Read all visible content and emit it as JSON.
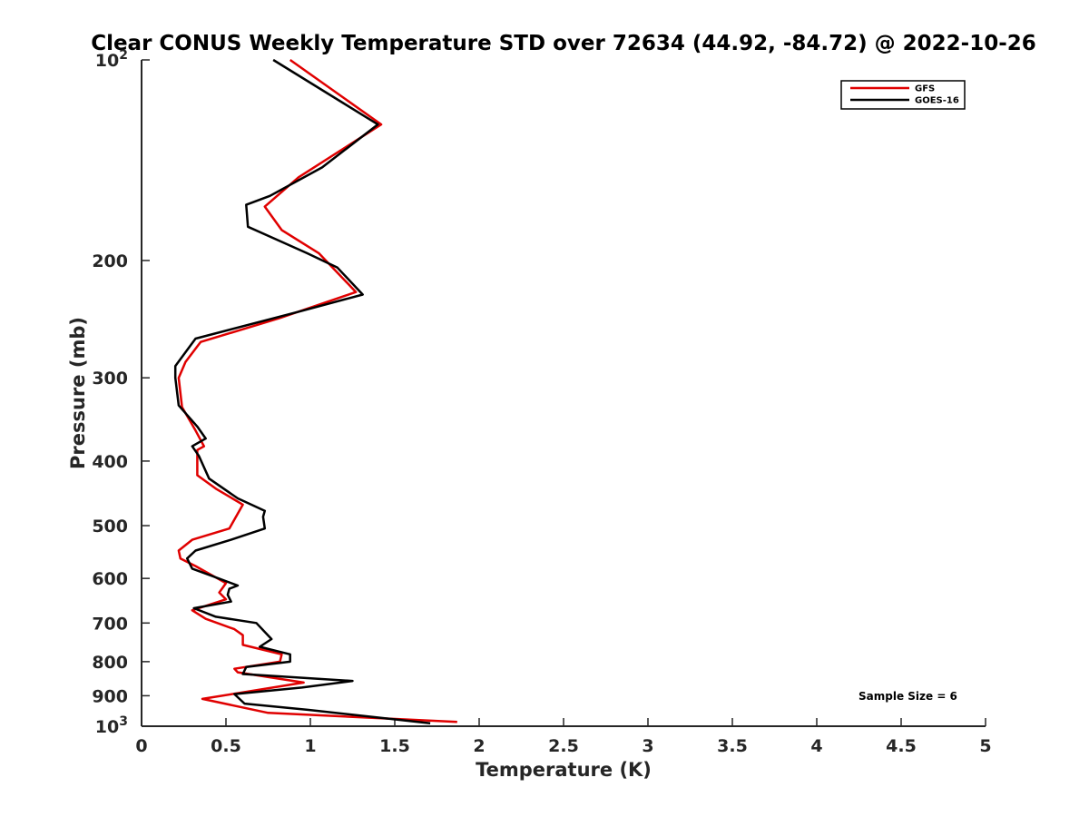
{
  "chart_data": {
    "type": "line",
    "title": "Clear CONUS Weekly Temperature STD over 72634 (44.92, -84.72) @ 2022-10-26",
    "xlabel": "Temperature (K)",
    "ylabel": "Pressure (mb)",
    "xlim": [
      0,
      5
    ],
    "ylim": [
      100,
      1000
    ],
    "yscale": "log",
    "y_reversed": true,
    "grid": false,
    "legend_position": "top-right",
    "x_ticks": [
      {
        "value": 0,
        "label": "0"
      },
      {
        "value": 0.5,
        "label": "0.5"
      },
      {
        "value": 1,
        "label": "1"
      },
      {
        "value": 1.5,
        "label": "1.5"
      },
      {
        "value": 2,
        "label": "2"
      },
      {
        "value": 2.5,
        "label": "2.5"
      },
      {
        "value": 3,
        "label": "3"
      },
      {
        "value": 3.5,
        "label": "3.5"
      },
      {
        "value": 4,
        "label": "4"
      },
      {
        "value": 4.5,
        "label": "4.5"
      },
      {
        "value": 5,
        "label": "5"
      }
    ],
    "y_ticks": [
      {
        "value": 100,
        "label": "10",
        "exp": "2"
      },
      {
        "value": 200,
        "label": "200"
      },
      {
        "value": 300,
        "label": "300"
      },
      {
        "value": 400,
        "label": "400"
      },
      {
        "value": 500,
        "label": "500"
      },
      {
        "value": 600,
        "label": "600"
      },
      {
        "value": 700,
        "label": "700"
      },
      {
        "value": 800,
        "label": "800"
      },
      {
        "value": 900,
        "label": "900"
      },
      {
        "value": 1000,
        "label": "10",
        "exp": "3"
      }
    ],
    "series": [
      {
        "name": "GFS",
        "color": "#e00000",
        "points": [
          [
            0.88,
            100
          ],
          [
            1.42,
            125
          ],
          [
            0.93,
            150
          ],
          [
            0.73,
            166
          ],
          [
            0.83,
            180
          ],
          [
            1.05,
            195
          ],
          [
            1.27,
            223
          ],
          [
            0.82,
            244
          ],
          [
            0.35,
            265
          ],
          [
            0.26,
            284
          ],
          [
            0.22,
            300
          ],
          [
            0.24,
            332
          ],
          [
            0.32,
            360
          ],
          [
            0.37,
            380
          ],
          [
            0.33,
            385
          ],
          [
            0.33,
            420
          ],
          [
            0.44,
            440
          ],
          [
            0.6,
            465
          ],
          [
            0.52,
            505
          ],
          [
            0.3,
            525
          ],
          [
            0.22,
            545
          ],
          [
            0.23,
            560
          ],
          [
            0.32,
            575
          ],
          [
            0.5,
            610
          ],
          [
            0.48,
            620
          ],
          [
            0.46,
            630
          ],
          [
            0.5,
            645
          ],
          [
            0.3,
            670
          ],
          [
            0.38,
            690
          ],
          [
            0.55,
            715
          ],
          [
            0.6,
            730
          ],
          [
            0.6,
            755
          ],
          [
            0.83,
            780
          ],
          [
            0.82,
            800
          ],
          [
            0.55,
            820
          ],
          [
            0.57,
            830
          ],
          [
            0.96,
            860
          ],
          [
            0.36,
            910
          ],
          [
            0.75,
            955
          ],
          [
            1.87,
            985
          ]
        ]
      },
      {
        "name": "GOES-16",
        "color": "#000000",
        "points": [
          [
            0.78,
            100
          ],
          [
            1.4,
            125
          ],
          [
            1.07,
            145
          ],
          [
            0.76,
            160
          ],
          [
            0.62,
            165
          ],
          [
            0.63,
            178
          ],
          [
            0.98,
            195
          ],
          [
            1.16,
            205
          ],
          [
            1.31,
            225
          ],
          [
            0.95,
            238
          ],
          [
            0.32,
            262
          ],
          [
            0.2,
            288
          ],
          [
            0.2,
            300
          ],
          [
            0.22,
            330
          ],
          [
            0.33,
            355
          ],
          [
            0.38,
            370
          ],
          [
            0.3,
            380
          ],
          [
            0.34,
            393
          ],
          [
            0.4,
            425
          ],
          [
            0.57,
            455
          ],
          [
            0.73,
            475
          ],
          [
            0.72,
            485
          ],
          [
            0.73,
            505
          ],
          [
            0.53,
            525
          ],
          [
            0.32,
            545
          ],
          [
            0.27,
            560
          ],
          [
            0.3,
            580
          ],
          [
            0.57,
            615
          ],
          [
            0.52,
            622
          ],
          [
            0.51,
            635
          ],
          [
            0.53,
            650
          ],
          [
            0.31,
            665
          ],
          [
            0.44,
            685
          ],
          [
            0.68,
            700
          ],
          [
            0.77,
            740
          ],
          [
            0.7,
            760
          ],
          [
            0.88,
            780
          ],
          [
            0.88,
            800
          ],
          [
            0.62,
            815
          ],
          [
            0.6,
            835
          ],
          [
            1.25,
            855
          ],
          [
            0.95,
            875
          ],
          [
            0.55,
            895
          ],
          [
            0.61,
            925
          ],
          [
            0.99,
            945
          ],
          [
            1.71,
            990
          ]
        ]
      }
    ],
    "annotations": [
      {
        "text": "Sample Size = 6"
      }
    ]
  }
}
